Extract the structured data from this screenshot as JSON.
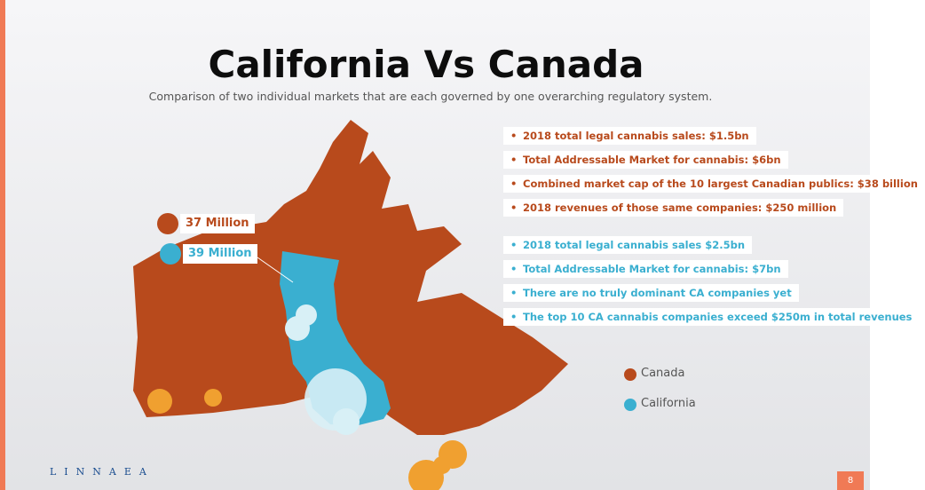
{
  "header": {
    "title": "California Vs Canada",
    "subtitle": "Comparison of two individual markets that are each governed by one overarching regulatory system."
  },
  "canada_points": [
    "2018 total legal cannabis sales: $1.5bn",
    "Total Addressable Market for cannabis: $6bn",
    "Combined market cap of the 10 largest Canadian publics: $38 billion",
    "2018 revenues of those same companies: $250 million"
  ],
  "california_points": [
    "2018  total legal cannabis sales  $2.5bn",
    "Total Addressable Market for cannabis: $7bn",
    "There are no truly dominant CA companies yet",
    "The top 10 CA cannabis companies exceed $250m in total revenues"
  ],
  "population": {
    "canada": "37 Million",
    "california": "39 Million"
  },
  "legend": [
    "Canada",
    "California"
  ],
  "footer": {
    "logo": "LINNAEA",
    "page": "8"
  }
}
